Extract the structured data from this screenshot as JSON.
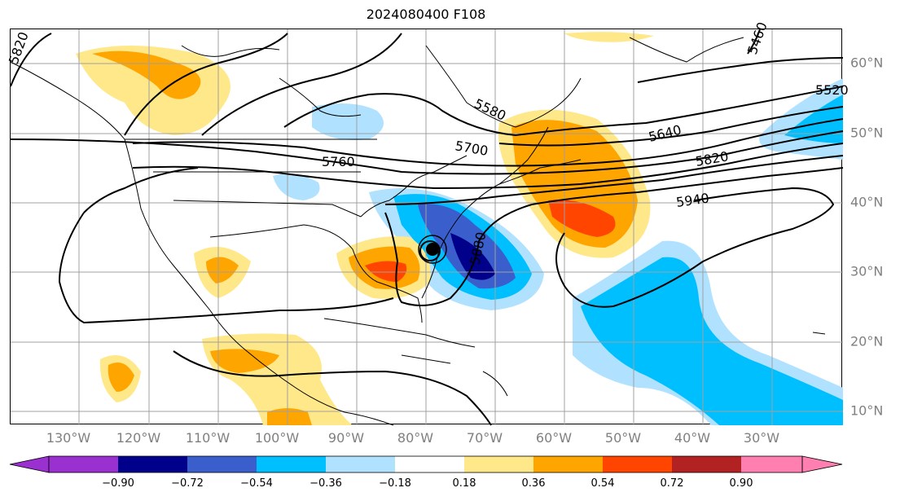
{
  "title": "2024080400 F108",
  "longitude_labels": [
    "130°W",
    "120°W",
    "110°W",
    "100°W",
    "90°W",
    "80°W",
    "70°W",
    "60°W",
    "50°W",
    "40°W",
    "30°W"
  ],
  "latitude_labels": [
    "60°N",
    "50°N",
    "40°N",
    "30°N",
    "20°N",
    "10°N"
  ],
  "contour_labels": [
    "5820",
    "5460",
    "5520",
    "5580",
    "5640",
    "5700",
    "5760",
    "5820",
    "5880",
    "5940"
  ],
  "colorbar": {
    "ticks": [
      "−0.90",
      "−0.72",
      "−0.54",
      "−0.36",
      "−0.18",
      "0.18",
      "0.36",
      "0.54",
      "0.72",
      "0.90"
    ],
    "colors": [
      "#9b30d0",
      "#00008b",
      "#3a5fcd",
      "#00bfff",
      "#b0e2ff",
      "#ffffff",
      "#ffe88a",
      "#ffa500",
      "#ff4500",
      "#b22222",
      "#ff80b0"
    ]
  },
  "colors": {
    "contour": "#000000",
    "coastline": "#000000",
    "gridline": "#a0a0a0",
    "tick_label": "#808080"
  }
}
